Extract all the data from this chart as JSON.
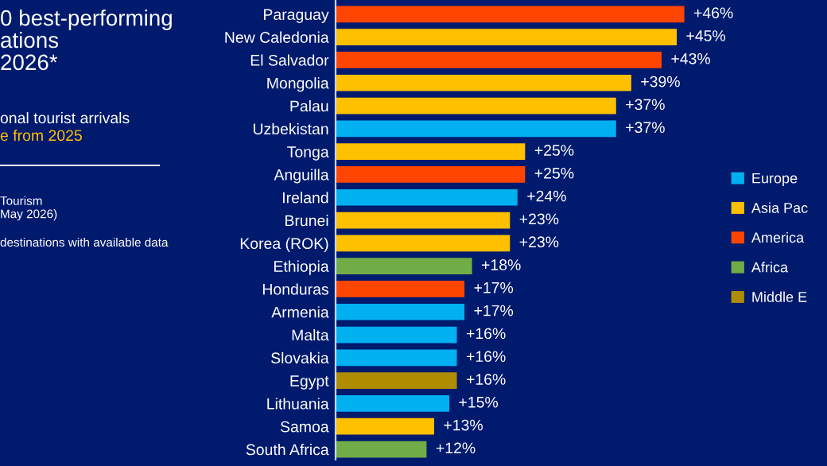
{
  "chart_data": {
    "type": "bar",
    "orientation": "horizontal",
    "stacked": true,
    "title": "0 best-performing\nations\n2026*",
    "subtitle": "onal tourist arrivals",
    "annotations": [
      "e from 2025",
      "Tourism\nMay 2026)",
      "destinations with available data"
    ],
    "categories": [
      "Paraguay",
      "New Caledonia",
      "El Salvador",
      "Mongolia",
      "Palau",
      "Uzbekistan",
      "Tonga",
      "Anguilla",
      "Ireland",
      "Brunei",
      "Korea (ROK)",
      "Ethiopia",
      "Honduras",
      "Armenia",
      "Malta",
      "Slovakia",
      "Egypt",
      "Lithuania",
      "Samoa",
      "South Africa"
    ],
    "series": [
      {
        "name": "Europe",
        "color": "#00b0f0",
        "values": [
          null,
          null,
          null,
          null,
          null,
          37,
          null,
          null,
          24,
          null,
          null,
          null,
          null,
          17,
          16,
          16,
          null,
          15,
          null,
          null
        ],
        "value_labels": [
          null,
          null,
          null,
          null,
          null,
          "+37%",
          null,
          null,
          "+24%",
          null,
          null,
          null,
          null,
          "+17%",
          "+16%",
          "+16%",
          null,
          "+15%",
          null,
          null
        ]
      },
      {
        "name": "Asia Pac",
        "color": "#ffc000",
        "values": [
          null,
          45,
          null,
          39,
          37,
          null,
          25,
          null,
          null,
          23,
          23,
          null,
          null,
          null,
          null,
          null,
          null,
          null,
          13,
          null
        ],
        "value_labels": [
          null,
          "+45%",
          null,
          "+39%",
          "+37%",
          null,
          "+25%",
          null,
          null,
          "+23%",
          "+23%",
          null,
          null,
          null,
          null,
          null,
          null,
          null,
          "+13%",
          null
        ]
      },
      {
        "name": "America",
        "color": "#ff4500",
        "values": [
          46,
          null,
          43,
          null,
          null,
          null,
          null,
          25,
          null,
          null,
          null,
          null,
          17,
          null,
          null,
          null,
          null,
          null,
          null,
          null
        ],
        "value_labels": [
          "+46%",
          null,
          "+43%",
          null,
          null,
          null,
          null,
          "+25%",
          null,
          null,
          null,
          null,
          "+17%",
          null,
          null,
          null,
          null,
          null,
          null,
          null
        ]
      },
      {
        "name": "Africa",
        "color": "#70ad47",
        "values": [
          null,
          null,
          null,
          null,
          null,
          null,
          null,
          null,
          null,
          null,
          null,
          18,
          null,
          null,
          null,
          null,
          null,
          null,
          null,
          12
        ],
        "value_labels": [
          null,
          null,
          null,
          null,
          null,
          null,
          null,
          null,
          null,
          null,
          null,
          "+18%",
          null,
          null,
          null,
          null,
          null,
          null,
          null,
          "+12%"
        ]
      },
      {
        "name": "Middle E",
        "color": "#b08c00",
        "values": [
          null,
          null,
          null,
          null,
          null,
          null,
          null,
          null,
          null,
          null,
          null,
          null,
          null,
          null,
          null,
          null,
          16,
          null,
          null,
          null
        ],
        "value_labels": [
          null,
          null,
          null,
          null,
          null,
          null,
          null,
          null,
          null,
          null,
          null,
          null,
          null,
          null,
          null,
          null,
          "+16%",
          null,
          null,
          null
        ]
      }
    ],
    "grid": false,
    "legend": "right"
  }
}
